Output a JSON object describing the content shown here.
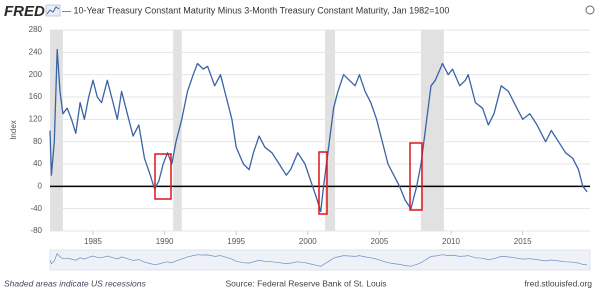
{
  "logo": "FRED",
  "chart_data": {
    "type": "line",
    "title": "— 10-Year Treasury Constant Maturity Minus 3-Month Treasury Constant Maturity, Jan 1982=100",
    "y_label": "Index",
    "x": [
      1982.0,
      1982.1,
      1982.3,
      1982.5,
      1982.7,
      1982.9,
      1983.2,
      1983.5,
      1983.8,
      1984.1,
      1984.4,
      1984.7,
      1985.0,
      1985.3,
      1985.6,
      1986.0,
      1986.3,
      1986.7,
      1987.0,
      1987.4,
      1987.8,
      1988.2,
      1988.6,
      1989.0,
      1989.3,
      1989.6,
      1989.9,
      1990.2,
      1990.5,
      1990.8,
      1991.2,
      1991.6,
      1992.0,
      1992.3,
      1992.7,
      1993.0,
      1993.5,
      1993.9,
      1994.3,
      1994.7,
      1995.0,
      1995.5,
      1995.9,
      1996.2,
      1996.6,
      1997.0,
      1997.5,
      1998.0,
      1998.5,
      1998.8,
      1999.3,
      1999.8,
      2000.2,
      2000.6,
      2000.9,
      2001.1,
      2001.4,
      2001.8,
      2002.1,
      2002.5,
      2002.9,
      2003.3,
      2003.6,
      2004.0,
      2004.4,
      2004.8,
      2005.2,
      2005.6,
      2006.0,
      2006.4,
      2006.8,
      2007.2,
      2007.4,
      2007.6,
      2007.9,
      2008.2,
      2008.6,
      2008.9,
      2009.4,
      2009.8,
      2010.1,
      2010.6,
      2011.0,
      2011.2,
      2011.7,
      2012.2,
      2012.6,
      2013.0,
      2013.5,
      2014.0,
      2014.6,
      2015.0,
      2015.5,
      2016.0,
      2016.6,
      2017.0,
      2017.5,
      2018.0,
      2018.5,
      2018.9,
      2019.2,
      2019.5
    ],
    "values": [
      100,
      20,
      80,
      245,
      170,
      130,
      140,
      120,
      95,
      150,
      120,
      160,
      190,
      160,
      150,
      190,
      160,
      120,
      170,
      130,
      90,
      110,
      50,
      20,
      -5,
      10,
      40,
      60,
      40,
      80,
      120,
      170,
      200,
      220,
      210,
      215,
      180,
      200,
      160,
      120,
      70,
      40,
      30,
      60,
      90,
      70,
      60,
      40,
      20,
      30,
      60,
      40,
      10,
      -20,
      -45,
      0,
      60,
      140,
      170,
      200,
      190,
      180,
      200,
      170,
      150,
      120,
      80,
      40,
      20,
      0,
      -25,
      -40,
      -20,
      0,
      40,
      100,
      180,
      190,
      220,
      200,
      210,
      180,
      190,
      200,
      150,
      140,
      110,
      130,
      180,
      170,
      140,
      120,
      130,
      110,
      80,
      100,
      80,
      60,
      50,
      30,
      0,
      -10
    ],
    "color": "#3a63a6",
    "xlim": [
      1982,
      2019.7
    ],
    "xticks": [
      1985,
      1990,
      1995,
      2000,
      2005,
      2010,
      2015
    ],
    "ylim": [
      -80,
      280
    ],
    "yticks": [
      -80,
      -40,
      0,
      40,
      80,
      120,
      160,
      200,
      240,
      280
    ],
    "grid": true,
    "reference_line": 0,
    "recessions": [
      [
        1981.5,
        1982.9
      ],
      [
        1990.6,
        1991.2
      ],
      [
        2001.2,
        2001.9
      ],
      [
        2007.9,
        2009.5
      ]
    ],
    "recession_note": "Shaded areas indicate US recessions",
    "source": "Source: Federal Reserve Bank of St. Louis",
    "site": "fred.stlouisfed.org"
  }
}
